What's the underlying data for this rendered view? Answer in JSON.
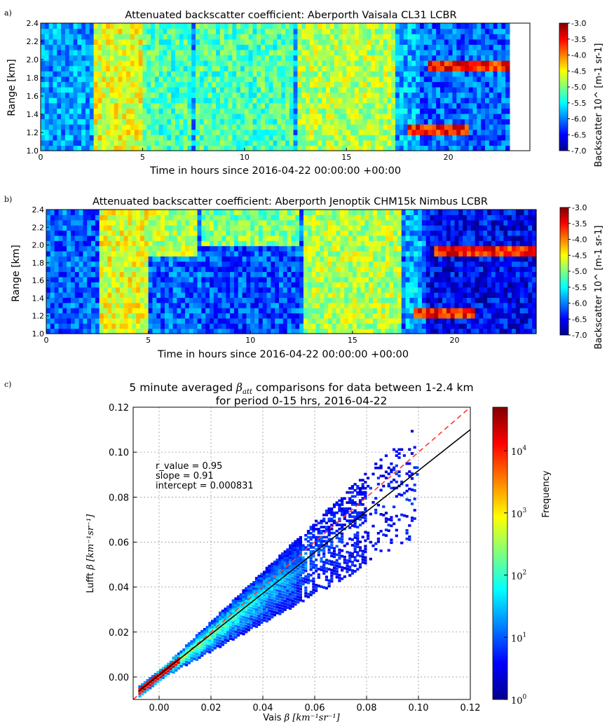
{
  "chart_data": [
    {
      "panel_label": "a)",
      "type": "heatmap",
      "title": "Attenuated backscatter coefficient: Aberporth Vaisala CL31 LCBR",
      "xlabel": "Time in hours since 2016-04-22 00:00:00 +00:00",
      "ylabel": "Range [km]",
      "xlim": [
        0,
        24
      ],
      "ylim": [
        1.0,
        2.4
      ],
      "x_ticks": [
        "0",
        "5",
        "10",
        "15",
        "20"
      ],
      "y_ticks": [
        "1.0",
        "1.2",
        "1.4",
        "1.6",
        "1.8",
        "2.0",
        "2.2",
        "2.4"
      ],
      "colorbar": {
        "label": "Backscatter 10^ [m-1 sr-1]",
        "range": [
          -7.0,
          -3.0
        ],
        "ticks": [
          "-3.0",
          "-3.5",
          "-4.0",
          "-4.5",
          "-5.0",
          "-5.5",
          "-6.0",
          "-6.5",
          "-7.0"
        ],
        "colormap": "jet"
      },
      "data_end_hour": 23
    },
    {
      "panel_label": "b)",
      "type": "heatmap",
      "title": "Attenuated backscatter coefficient: Aberporth Jenoptik CHM15k Nimbus LCBR",
      "xlabel": "Time in hours since 2016-04-22 00:00:00 +00:00",
      "ylabel": "Range [km]",
      "xlim": [
        0,
        24
      ],
      "ylim": [
        1.0,
        2.4
      ],
      "x_ticks": [
        "0",
        "5",
        "10",
        "15",
        "20"
      ],
      "y_ticks": [
        "1.0",
        "1.2",
        "1.4",
        "1.6",
        "1.8",
        "2.0",
        "2.2",
        "2.4"
      ],
      "colorbar": {
        "label": "Backscatter 10^ [m-1 sr-1]",
        "range": [
          -7.0,
          -3.0
        ],
        "ticks": [
          "-3.0",
          "-3.5",
          "-4.0",
          "-4.5",
          "-5.0",
          "-5.5",
          "-6.0",
          "-6.5",
          "-7.0"
        ],
        "colormap": "jet"
      },
      "data_end_hour": 24
    },
    {
      "panel_label": "c)",
      "type": "heatmap",
      "title_prefix": "5 minute averaged ",
      "title_symbol": "β",
      "title_subscript": "att",
      "title_suffix": " comparisons for data between 1-2.4 km",
      "title_line2": "for period 0-15 hrs, 2016-04-22",
      "xlabel_prefix": "Vais ",
      "ylabel_prefix": "Lufft ",
      "axis_unit": "β [km⁻¹sr⁻¹]",
      "xlim": [
        -0.01,
        0.12
      ],
      "ylim": [
        -0.01,
        0.12
      ],
      "x_ticks": [
        "0.00",
        "0.02",
        "0.04",
        "0.06",
        "0.08",
        "0.10",
        "0.12"
      ],
      "y_ticks": [
        "0.00",
        "0.02",
        "0.04",
        "0.06",
        "0.08",
        "0.10",
        "0.12"
      ],
      "grid": true,
      "annotations": [
        "r_value = 0.95",
        "slope = 0.91",
        "intercept = 0.000831"
      ],
      "fit_line": {
        "slope": 0.91,
        "intercept": 0.000831,
        "color": "#000000"
      },
      "one_to_one_line": {
        "color": "#ff3333",
        "style": "dashed"
      },
      "colorbar": {
        "label": "Frequency",
        "scale": "log",
        "range": [
          1,
          50000
        ],
        "ticks": [
          {
            "base": "10",
            "exp": "0",
            "value": 1
          },
          {
            "base": "10",
            "exp": "1",
            "value": 10
          },
          {
            "base": "10",
            "exp": "2",
            "value": 100
          },
          {
            "base": "10",
            "exp": "3",
            "value": 1000
          },
          {
            "base": "10",
            "exp": "4",
            "value": 10000
          }
        ],
        "colormap": "jet"
      }
    }
  ]
}
